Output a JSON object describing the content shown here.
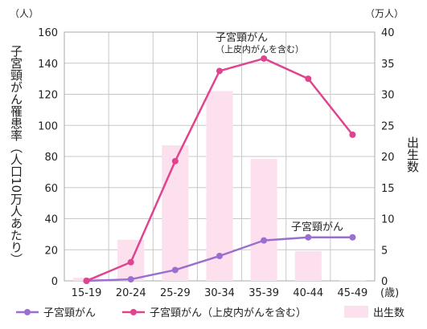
{
  "chart_data": {
    "type": "bar+line",
    "categories": [
      "15-19",
      "20-24",
      "25-29",
      "30-34",
      "35-39",
      "40-44",
      "45-49"
    ],
    "x_unit": "(歳)",
    "left_axis": {
      "label": "子宮頸がん罹患率（人口10万人あたり）",
      "unit": "（人）",
      "range": [
        0,
        160
      ],
      "ticks": [
        "0",
        "20",
        "40",
        "60",
        "80",
        "100",
        "120",
        "140",
        "160"
      ]
    },
    "right_axis": {
      "label": "出生数",
      "unit": "（万人）",
      "range": [
        0,
        40
      ],
      "ticks": [
        "0",
        "5",
        "10",
        "15",
        "20",
        "25",
        "30",
        "35",
        "40"
      ]
    },
    "series": [
      {
        "name": "子宮頸がん",
        "type": "line",
        "axis": "left",
        "color": "#9b6fd0",
        "values": [
          0,
          1,
          7,
          16,
          26,
          28,
          28
        ]
      },
      {
        "name": "子宮頸がん（上皮内がんを含む）",
        "type": "line",
        "axis": "left",
        "color": "#e0448f",
        "values": [
          0,
          12,
          77,
          135,
          143,
          130,
          94
        ]
      },
      {
        "name": "出生数",
        "type": "bar",
        "axis": "right",
        "color": "#fce0ee",
        "values": [
          0.5,
          6.6,
          21.8,
          30.5,
          19.6,
          4.8,
          0.1
        ]
      }
    ],
    "annotations": {
      "incl_title": "子宮頸がん",
      "incl_sub": "（上皮内がんを含む）",
      "cancer": "子宮頸がん"
    },
    "grid": true,
    "legend": "bottom"
  }
}
